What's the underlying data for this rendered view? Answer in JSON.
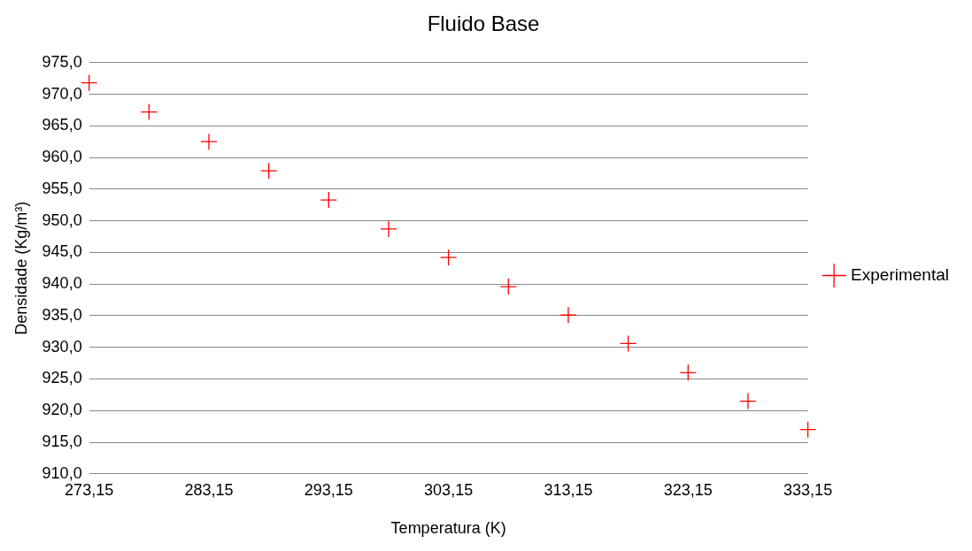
{
  "chart_data": {
    "type": "scatter",
    "title": "Fluido Base",
    "xlabel": "Temperatura (K)",
    "ylabel": "Densidade (Kg/m³)",
    "x": [
      273.15,
      278.15,
      283.15,
      288.15,
      293.15,
      298.15,
      303.15,
      308.15,
      313.15,
      318.15,
      323.15,
      328.15,
      333.15
    ],
    "series": [
      {
        "name": "Experimental",
        "color": "#ff0000",
        "values": [
          971.8,
          967.2,
          962.5,
          957.9,
          953.3,
          948.7,
          944.2,
          939.6,
          935.1,
          930.6,
          926.0,
          921.5,
          917.0
        ]
      }
    ],
    "xlim": [
      273.15,
      333.15
    ],
    "xticks": [
      {
        "value": 273.15,
        "label": "273,15"
      },
      {
        "value": 283.15,
        "label": "283,15"
      },
      {
        "value": 293.15,
        "label": "293,15"
      },
      {
        "value": 303.15,
        "label": "303,15"
      },
      {
        "value": 313.15,
        "label": "313,15"
      },
      {
        "value": 323.15,
        "label": "323,15"
      },
      {
        "value": 333.15,
        "label": "333,15"
      }
    ],
    "ylim": [
      910,
      975
    ],
    "yticks": [
      {
        "value": 910,
        "label": "910,0"
      },
      {
        "value": 915,
        "label": "915,0"
      },
      {
        "value": 920,
        "label": "920,0"
      },
      {
        "value": 925,
        "label": "925,0"
      },
      {
        "value": 930,
        "label": "930,0"
      },
      {
        "value": 935,
        "label": "935,0"
      },
      {
        "value": 940,
        "label": "940,0"
      },
      {
        "value": 945,
        "label": "945,0"
      },
      {
        "value": 950,
        "label": "950,0"
      },
      {
        "value": 955,
        "label": "955,0"
      },
      {
        "value": 960,
        "label": "960,0"
      },
      {
        "value": 965,
        "label": "965,0"
      },
      {
        "value": 970,
        "label": "970,0"
      },
      {
        "value": 975,
        "label": "975,0"
      }
    ],
    "grid": "y",
    "legend": "right",
    "marker": "cross"
  }
}
